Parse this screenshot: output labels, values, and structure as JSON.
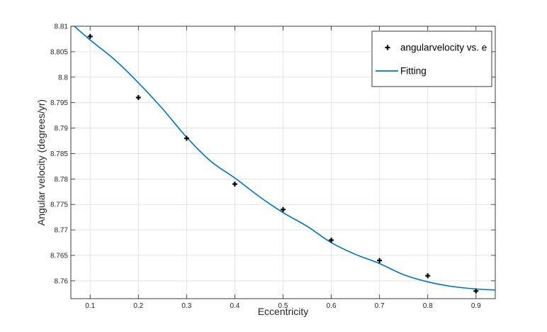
{
  "chart_data": {
    "type": "scatter",
    "title": "",
    "xlabel": "Eccentricity",
    "ylabel": "Angular velocity (degrees/yr)",
    "xlim": [
      0.06,
      0.94
    ],
    "ylim": [
      8.7565,
      8.81
    ],
    "grid": true,
    "legend_position": "top-right",
    "x_ticks": [
      0.1,
      0.2,
      0.3,
      0.4,
      0.5,
      0.6,
      0.7,
      0.8,
      0.9
    ],
    "x_tick_labels": [
      "0.1",
      "0.2",
      "0.3",
      "0.4",
      "0.5",
      "0.6",
      "0.7",
      "0.8",
      "0.9"
    ],
    "y_ticks": [
      8.76,
      8.765,
      8.77,
      8.775,
      8.78,
      8.785,
      8.79,
      8.795,
      8.8,
      8.805,
      8.81
    ],
    "y_tick_labels": [
      "8.76",
      "8.765",
      "8.77",
      "8.775",
      "8.78",
      "8.785",
      "8.79",
      "8.795",
      "8.8",
      "8.805",
      "8.81"
    ],
    "series": [
      {
        "name": "angularvelocity vs. e",
        "kind": "markers",
        "marker": "plus",
        "color": "#000000",
        "x": [
          0.1,
          0.2,
          0.3,
          0.4,
          0.5,
          0.6,
          0.7,
          0.8,
          0.9
        ],
        "y": [
          8.808,
          8.796,
          8.788,
          8.779,
          8.774,
          8.768,
          8.764,
          8.761,
          8.758
        ]
      },
      {
        "name": "Fitting",
        "kind": "line",
        "color": "#0072BD",
        "x": [
          0.06,
          0.1,
          0.15,
          0.2,
          0.25,
          0.3,
          0.35,
          0.4,
          0.45,
          0.5,
          0.55,
          0.6,
          0.65,
          0.7,
          0.75,
          0.8,
          0.85,
          0.9,
          0.94
        ],
        "y": [
          8.8106,
          8.8073,
          8.8035,
          8.7989,
          8.7938,
          8.7882,
          8.7835,
          8.7802,
          8.7766,
          8.7734,
          8.7707,
          8.7675,
          8.7652,
          8.7634,
          8.7612,
          8.7598,
          8.7589,
          8.7584,
          8.7582
        ]
      }
    ]
  }
}
